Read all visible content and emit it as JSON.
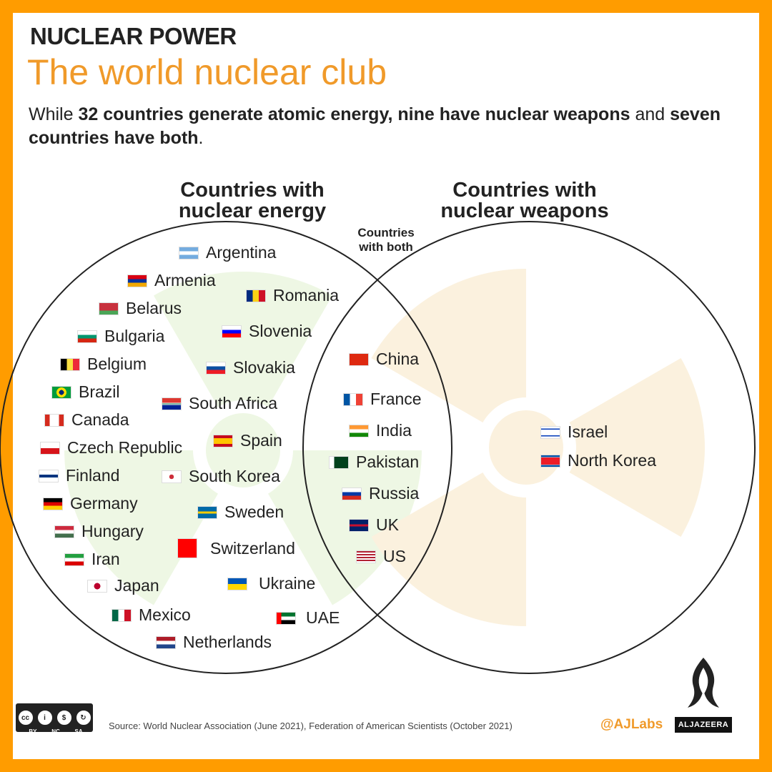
{
  "header": {
    "kicker": "NUCLEAR POWER",
    "title": "The world nuclear club",
    "subtitle_parts": [
      "While ",
      "32 countries generate atomic energy, nine have nuclear weapons",
      " and ",
      "seven countries have both",
      "."
    ]
  },
  "venn": {
    "energy_heading": [
      "Countries with",
      "nuclear energy"
    ],
    "weapons_heading": [
      "Countries with",
      "nuclear weapons"
    ],
    "both_heading": [
      "Countries",
      "with both"
    ],
    "energy_only": [
      "Argentina",
      "Armenia",
      "Romania",
      "Belarus",
      "Bulgaria",
      "Slovenia",
      "Belgium",
      "Slovakia",
      "Brazil",
      "South Africa",
      "Canada",
      "Czech Republic",
      "Spain",
      "Finland",
      "South Korea",
      "Germany",
      "Sweden",
      "Hungary",
      "Switzerland",
      "Iran",
      "Japan",
      "Ukraine",
      "Mexico",
      "UAE",
      "Netherlands"
    ],
    "both": [
      "China",
      "France",
      "India",
      "Pakistan",
      "Russia",
      "UK",
      "US"
    ],
    "weapons_only": [
      "Israel",
      "North Korea"
    ],
    "colors": {
      "circle_stroke": "#222222",
      "energy_trefoil": "#eef7e4",
      "weapons_trefoil": "#fbf1de",
      "accent": "#f09a2a",
      "border": "#ff9c00"
    }
  },
  "footer": {
    "license": [
      "BY",
      "NC",
      "SA"
    ],
    "source": "Source: World Nuclear Association (June 2021), Federation of American Scientists (October 2021)",
    "handle": "@AJLabs",
    "brand": "ALJAZEERA"
  }
}
